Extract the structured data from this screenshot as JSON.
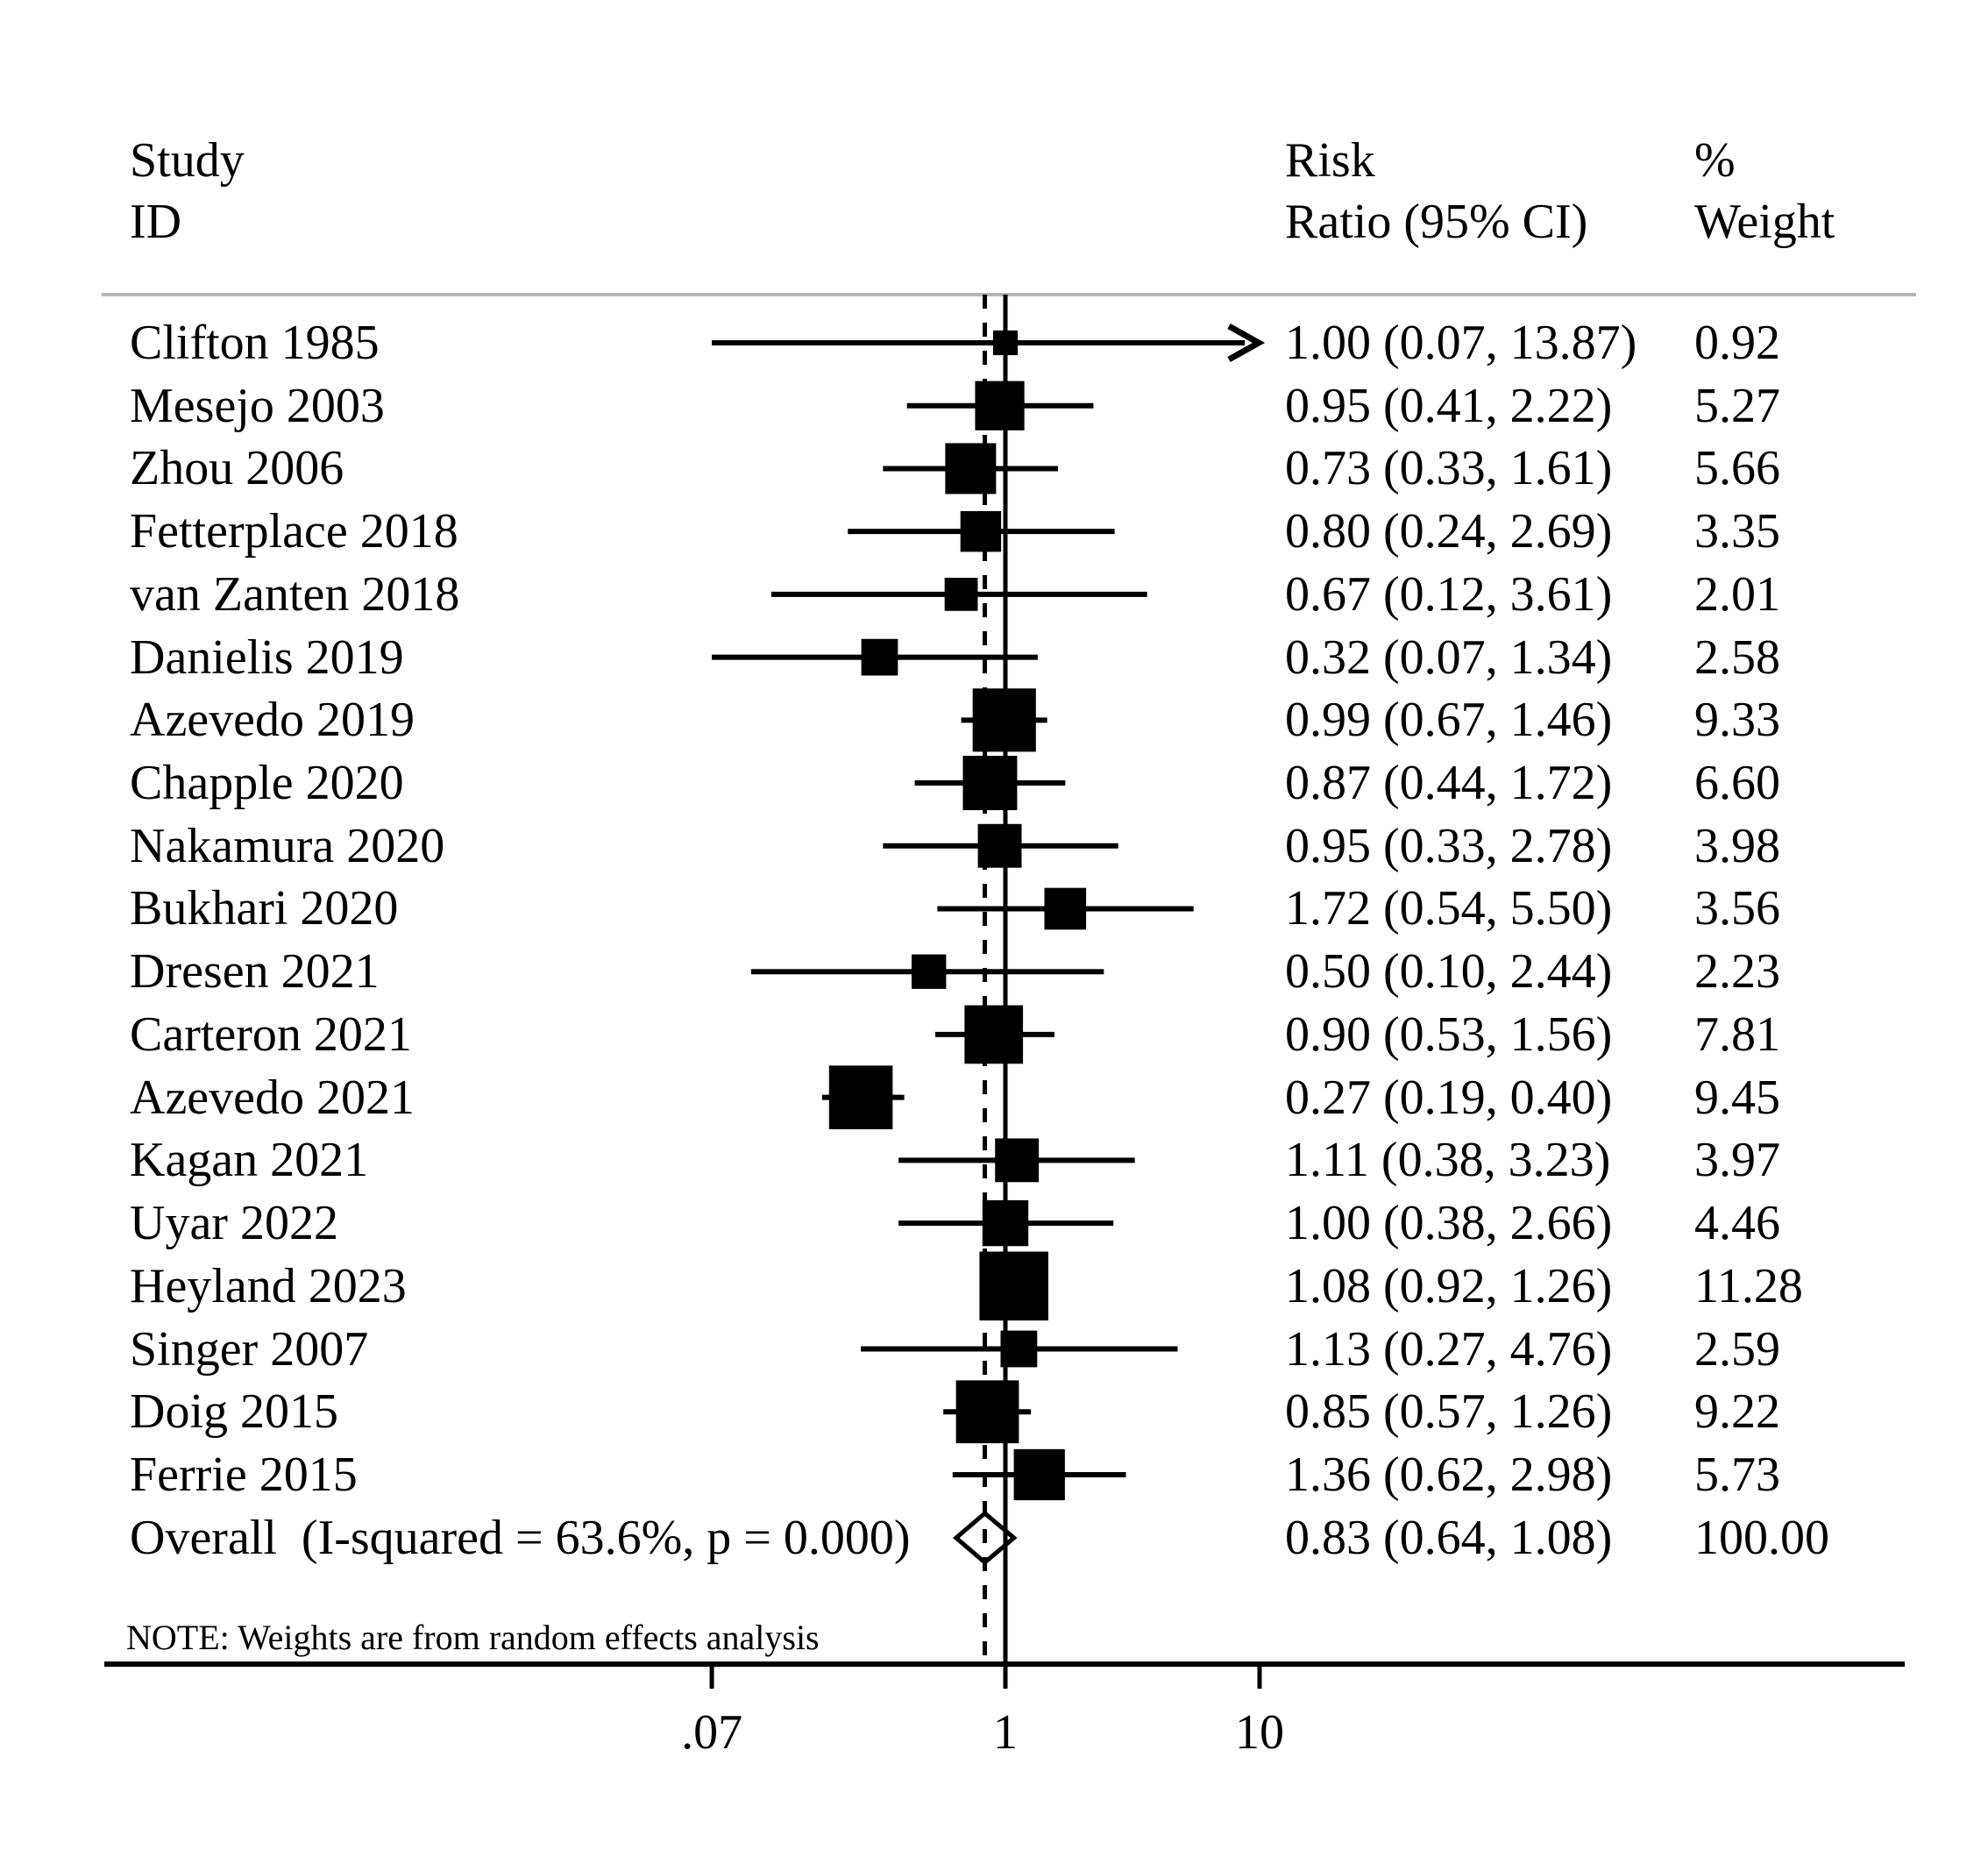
{
  "header": {
    "study_col": [
      "Study",
      "ID"
    ],
    "rr_col": [
      "Risk",
      "Ratio (95% CI)"
    ],
    "weight_col": [
      "%",
      "Weight"
    ]
  },
  "note": "NOTE: Weights are from random effects analysis",
  "axis": {
    "tick_labels": [
      ".07",
      "1",
      "10"
    ],
    "tick_values": [
      0.07,
      1,
      10
    ]
  },
  "colors": {
    "ink": "#000000",
    "header_rule": "#b5b5b5"
  },
  "chart_data": {
    "type": "forest",
    "x_scale": "log10",
    "xlim": [
      0.07,
      10
    ],
    "null_line_value": 1.0,
    "overall_line_value": 0.83,
    "legend_position": "none",
    "grid": false,
    "studies": [
      {
        "id": "Clifton 1985",
        "est": 1.0,
        "lo": 0.07,
        "hi": 13.87,
        "ci_text": "1.00 (0.07, 13.87)",
        "weight": 0.92,
        "weight_text": "0.92",
        "arrow_high": true
      },
      {
        "id": "Mesejo 2003",
        "est": 0.95,
        "lo": 0.41,
        "hi": 2.22,
        "ci_text": "0.95 (0.41, 2.22)",
        "weight": 5.27,
        "weight_text": "5.27",
        "arrow_high": false
      },
      {
        "id": "Zhou 2006",
        "est": 0.73,
        "lo": 0.33,
        "hi": 1.61,
        "ci_text": "0.73 (0.33, 1.61)",
        "weight": 5.66,
        "weight_text": "5.66",
        "arrow_high": false
      },
      {
        "id": "Fetterplace 2018",
        "est": 0.8,
        "lo": 0.24,
        "hi": 2.69,
        "ci_text": "0.80 (0.24, 2.69)",
        "weight": 3.35,
        "weight_text": "3.35",
        "arrow_high": false
      },
      {
        "id": "van Zanten 2018",
        "est": 0.67,
        "lo": 0.12,
        "hi": 3.61,
        "ci_text": "0.67 (0.12, 3.61)",
        "weight": 2.01,
        "weight_text": "2.01",
        "arrow_high": false
      },
      {
        "id": "Danielis 2019",
        "est": 0.32,
        "lo": 0.07,
        "hi": 1.34,
        "ci_text": "0.32 (0.07, 1.34)",
        "weight": 2.58,
        "weight_text": "2.58",
        "arrow_high": false
      },
      {
        "id": "Azevedo 2019",
        "est": 0.99,
        "lo": 0.67,
        "hi": 1.46,
        "ci_text": "0.99 (0.67, 1.46)",
        "weight": 9.33,
        "weight_text": "9.33",
        "arrow_high": false
      },
      {
        "id": "Chapple 2020",
        "est": 0.87,
        "lo": 0.44,
        "hi": 1.72,
        "ci_text": "0.87 (0.44, 1.72)",
        "weight": 6.6,
        "weight_text": "6.60",
        "arrow_high": false
      },
      {
        "id": "Nakamura 2020",
        "est": 0.95,
        "lo": 0.33,
        "hi": 2.78,
        "ci_text": "0.95 (0.33, 2.78)",
        "weight": 3.98,
        "weight_text": "3.98",
        "arrow_high": false
      },
      {
        "id": "Bukhari 2020",
        "est": 1.72,
        "lo": 0.54,
        "hi": 5.5,
        "ci_text": "1.72 (0.54, 5.50)",
        "weight": 3.56,
        "weight_text": "3.56",
        "arrow_high": false
      },
      {
        "id": "Dresen 2021",
        "est": 0.5,
        "lo": 0.1,
        "hi": 2.44,
        "ci_text": "0.50 (0.10, 2.44)",
        "weight": 2.23,
        "weight_text": "2.23",
        "arrow_high": false
      },
      {
        "id": "Carteron 2021",
        "est": 0.9,
        "lo": 0.53,
        "hi": 1.56,
        "ci_text": "0.90 (0.53, 1.56)",
        "weight": 7.81,
        "weight_text": "7.81",
        "arrow_high": false
      },
      {
        "id": "Azevedo 2021",
        "est": 0.27,
        "lo": 0.19,
        "hi": 0.4,
        "ci_text": "0.27 (0.19, 0.40)",
        "weight": 9.45,
        "weight_text": "9.45",
        "arrow_high": false
      },
      {
        "id": "Kagan 2021",
        "est": 1.11,
        "lo": 0.38,
        "hi": 3.23,
        "ci_text": "1.11 (0.38, 3.23)",
        "weight": 3.97,
        "weight_text": "3.97",
        "arrow_high": false
      },
      {
        "id": "Uyar 2022",
        "est": 1.0,
        "lo": 0.38,
        "hi": 2.66,
        "ci_text": "1.00 (0.38, 2.66)",
        "weight": 4.46,
        "weight_text": "4.46",
        "arrow_high": false
      },
      {
        "id": "Heyland 2023",
        "est": 1.08,
        "lo": 0.92,
        "hi": 1.26,
        "ci_text": "1.08 (0.92, 1.26)",
        "weight": 11.28,
        "weight_text": "11.28",
        "arrow_high": false
      },
      {
        "id": "Singer 2007",
        "est": 1.13,
        "lo": 0.27,
        "hi": 4.76,
        "ci_text": "1.13 (0.27, 4.76)",
        "weight": 2.59,
        "weight_text": "2.59",
        "arrow_high": false
      },
      {
        "id": "Doig 2015",
        "est": 0.85,
        "lo": 0.57,
        "hi": 1.26,
        "ci_text": "0.85 (0.57, 1.26)",
        "weight": 9.22,
        "weight_text": "9.22",
        "arrow_high": false
      },
      {
        "id": "Ferrie 2015",
        "est": 1.36,
        "lo": 0.62,
        "hi": 2.98,
        "ci_text": "1.36 (0.62, 2.98)",
        "weight": 5.73,
        "weight_text": "5.73",
        "arrow_high": false
      }
    ],
    "overall": {
      "label": "Overall  (I-squared = 63.6%, p = 0.000)",
      "est": 0.83,
      "lo": 0.64,
      "hi": 1.08,
      "ci_text": "0.83 (0.64, 1.08)",
      "weight_text": "100.00"
    }
  }
}
